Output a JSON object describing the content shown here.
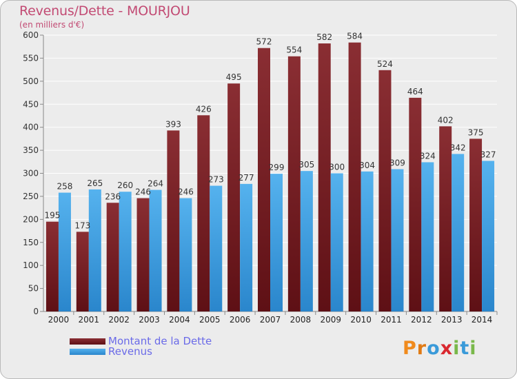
{
  "header": {
    "title": "Revenus/Dette - MOURJOU",
    "subtitle": "(en milliers d'€)"
  },
  "chart_data": {
    "type": "bar",
    "categories": [
      "2000",
      "2001",
      "2002",
      "2003",
      "2004",
      "2005",
      "2006",
      "2007",
      "2008",
      "2009",
      "2010",
      "2011",
      "2012",
      "2013",
      "2014"
    ],
    "series": [
      {
        "name": "Montant de la Dette",
        "color": "#7a1f24",
        "values": [
          195,
          173,
          236,
          246,
          393,
          426,
          495,
          572,
          554,
          582,
          584,
          524,
          464,
          402,
          375
        ]
      },
      {
        "name": "Revenus",
        "color": "#3fa2e6",
        "values": [
          258,
          265,
          260,
          264,
          246,
          273,
          277,
          299,
          305,
          300,
          304,
          309,
          324,
          342,
          327
        ]
      }
    ],
    "ylim": [
      0,
      600
    ],
    "yticks": [
      0,
      50,
      100,
      150,
      200,
      250,
      300,
      350,
      400,
      450,
      500,
      550,
      600
    ],
    "grid": true,
    "legend_position": "bottom-left"
  },
  "legend": {
    "items": [
      {
        "label": "Montant de la Dette",
        "color": "#7a1f24"
      },
      {
        "label": "Revenus",
        "color": "#3fa2e6"
      }
    ]
  },
  "brand": {
    "letters": [
      {
        "ch": "P",
        "color": "#f08a1c"
      },
      {
        "ch": "r",
        "color": "#e07a14"
      },
      {
        "ch": "o",
        "color": "#3a9ad9"
      },
      {
        "ch": "x",
        "color": "#d9282f"
      },
      {
        "ch": "i",
        "color": "#79b84a"
      },
      {
        "ch": "t",
        "color": "#3a9ad9"
      },
      {
        "ch": "i",
        "color": "#79b84a"
      }
    ]
  }
}
